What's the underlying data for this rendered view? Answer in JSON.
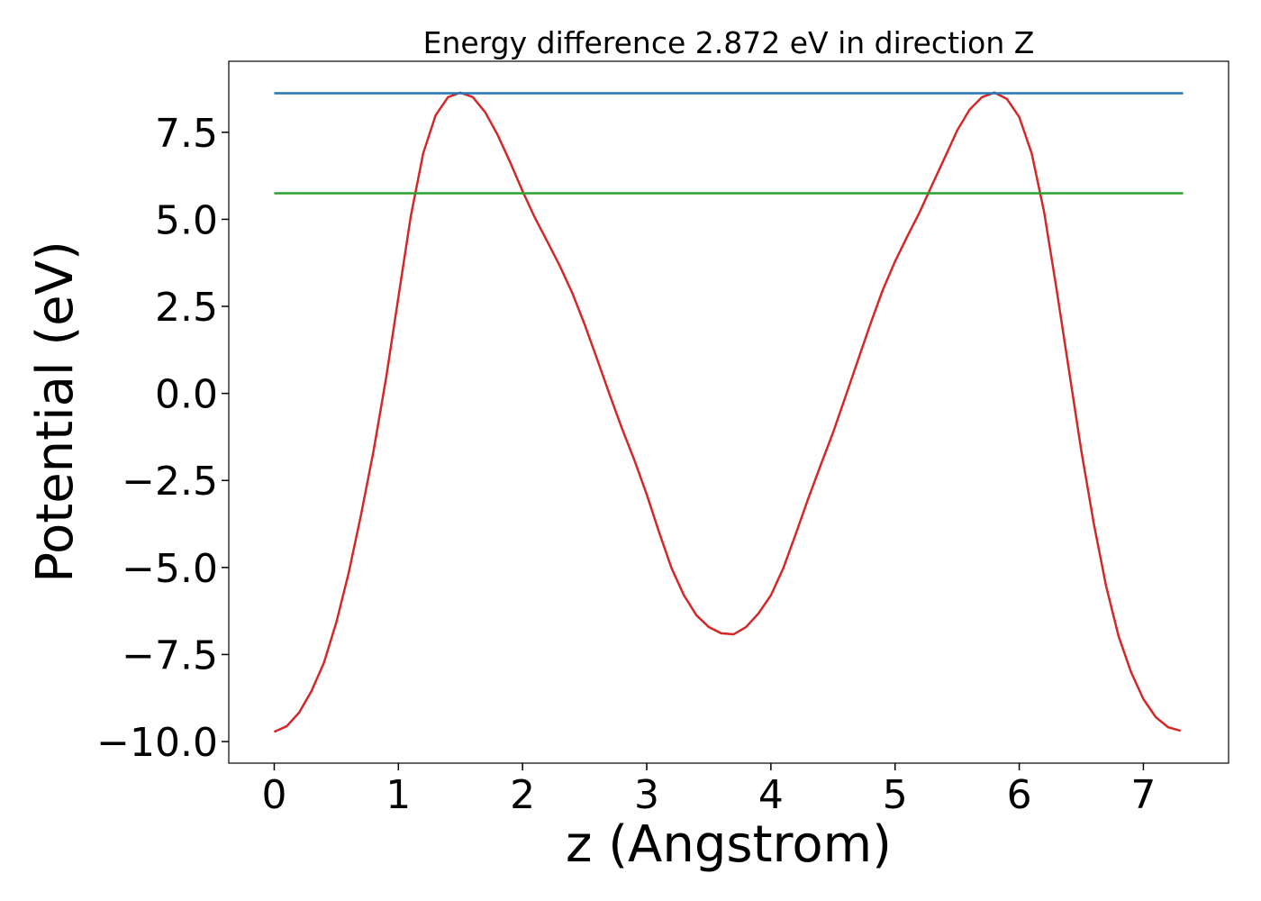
{
  "chart_data": {
    "type": "line",
    "title": "Energy difference 2.872 eV in direction Z",
    "xlabel": "z (Angstrom)",
    "ylabel": "Potential (eV)",
    "xlim": [
      -0.366,
      7.686
    ],
    "ylim": [
      -10.62,
      9.54
    ],
    "xticks": [
      0,
      1,
      2,
      3,
      4,
      5,
      6,
      7
    ],
    "yticks": [
      {
        "value": -10,
        "label": "−10.0"
      },
      {
        "value": -7.5,
        "label": "−7.5"
      },
      {
        "value": -5,
        "label": "−5.0"
      },
      {
        "value": -2.5,
        "label": "−2.5"
      },
      {
        "value": 0,
        "label": "0.0"
      },
      2.5,
      {
        "value": 5,
        "label": "5.0"
      },
      7.5
    ],
    "series": [
      {
        "color": "#d62728",
        "x": [
          0,
          0.1,
          0.2,
          0.3,
          0.4,
          0.5,
          0.6,
          0.7,
          0.8,
          0.9,
          1.0,
          1.1,
          1.2,
          1.3,
          1.4,
          1.5,
          1.6,
          1.7,
          1.8,
          1.9,
          2.0,
          2.1,
          2.2,
          2.3,
          2.4,
          2.5,
          2.6,
          2.7,
          2.8,
          2.9,
          3.0,
          3.1,
          3.2,
          3.3,
          3.4,
          3.5,
          3.6,
          3.7,
          3.8,
          3.9,
          4.0,
          4.1,
          4.2,
          4.3,
          4.4,
          4.5,
          4.6,
          4.7,
          4.8,
          4.9,
          5.0,
          5.1,
          5.2,
          5.3,
          5.4,
          5.5,
          5.6,
          5.7,
          5.8,
          5.9,
          6.0,
          6.1,
          6.2,
          6.3,
          6.4,
          6.5,
          6.6,
          6.7,
          6.8,
          6.9,
          7.0,
          7.1,
          7.2,
          7.3
        ],
        "values": [
          -9.72,
          -9.56,
          -9.17,
          -8.55,
          -7.74,
          -6.58,
          -5.15,
          -3.47,
          -1.65,
          0.42,
          2.76,
          5.09,
          6.9,
          7.99,
          8.51,
          8.64,
          8.51,
          8.07,
          7.42,
          6.64,
          5.81,
          5.04,
          4.36,
          3.66,
          2.89,
          1.98,
          0.99,
          -0.02,
          -1.0,
          -1.91,
          -2.9,
          -3.99,
          -5.02,
          -5.8,
          -6.37,
          -6.71,
          -6.89,
          -6.92,
          -6.71,
          -6.32,
          -5.8,
          -5.02,
          -4.04,
          -3.03,
          -2.07,
          -1.13,
          -0.1,
          0.94,
          1.98,
          2.96,
          3.79,
          4.52,
          5.22,
          6.0,
          6.77,
          7.55,
          8.15,
          8.51,
          8.64,
          8.46,
          7.94,
          6.9,
          5.22,
          3.01,
          0.68,
          -1.65,
          -3.73,
          -5.54,
          -6.97,
          -8.0,
          -8.78,
          -9.3,
          -9.59,
          -9.69
        ]
      },
      {
        "color": "#1f77b4",
        "x": [
          0,
          7.32
        ],
        "values": [
          8.62,
          8.62
        ]
      },
      {
        "color": "#2ca02c",
        "x": [
          0,
          7.32
        ],
        "values": [
          5.748,
          5.748
        ]
      }
    ]
  }
}
